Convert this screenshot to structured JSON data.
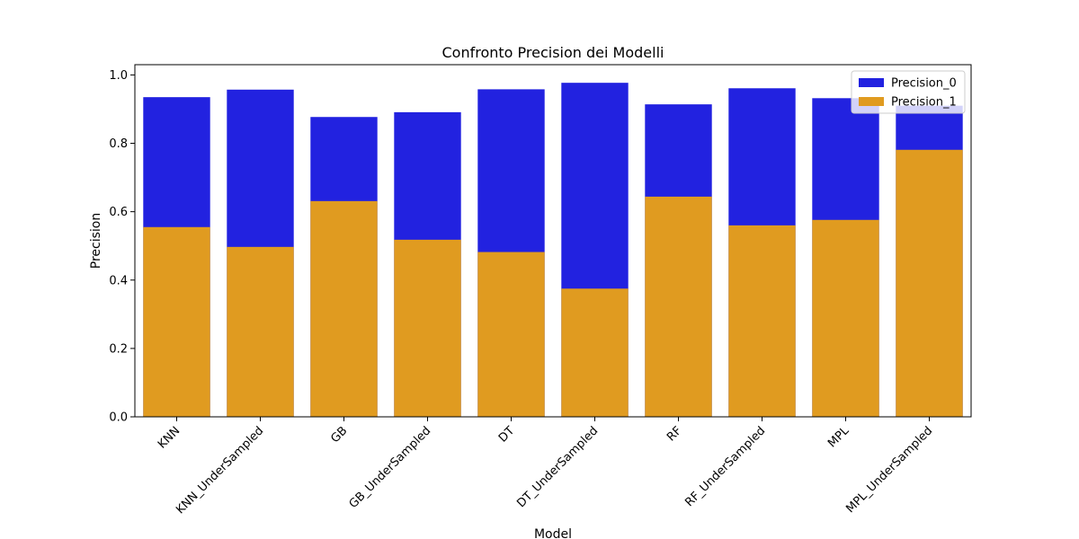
{
  "chart_data": {
    "type": "bar",
    "title": "Confronto Precision dei Modelli",
    "xlabel": "Model",
    "ylabel": "Precision",
    "ylim": [
      0,
      1.03
    ],
    "yticks": [
      "0.0",
      "0.2",
      "0.4",
      "0.6",
      "0.8",
      "1.0"
    ],
    "grid": false,
    "legend_position": "top-right",
    "categories": [
      "KNN",
      "KNN_UnderSampled",
      "GB",
      "GB_UnderSampled",
      "DT",
      "DT_UnderSampled",
      "RF",
      "RF_UnderSampled",
      "MPL",
      "MPL_UnderSampled"
    ],
    "series": [
      {
        "name": "Precision_0",
        "color": "#2222e0",
        "values": [
          0.935,
          0.957,
          0.877,
          0.891,
          0.958,
          0.977,
          0.914,
          0.961,
          0.932,
          0.91
        ]
      },
      {
        "name": "Precision_1",
        "color": "#e09b20",
        "values": [
          0.555,
          0.497,
          0.631,
          0.518,
          0.482,
          0.375,
          0.644,
          0.56,
          0.576,
          0.781
        ]
      }
    ]
  }
}
